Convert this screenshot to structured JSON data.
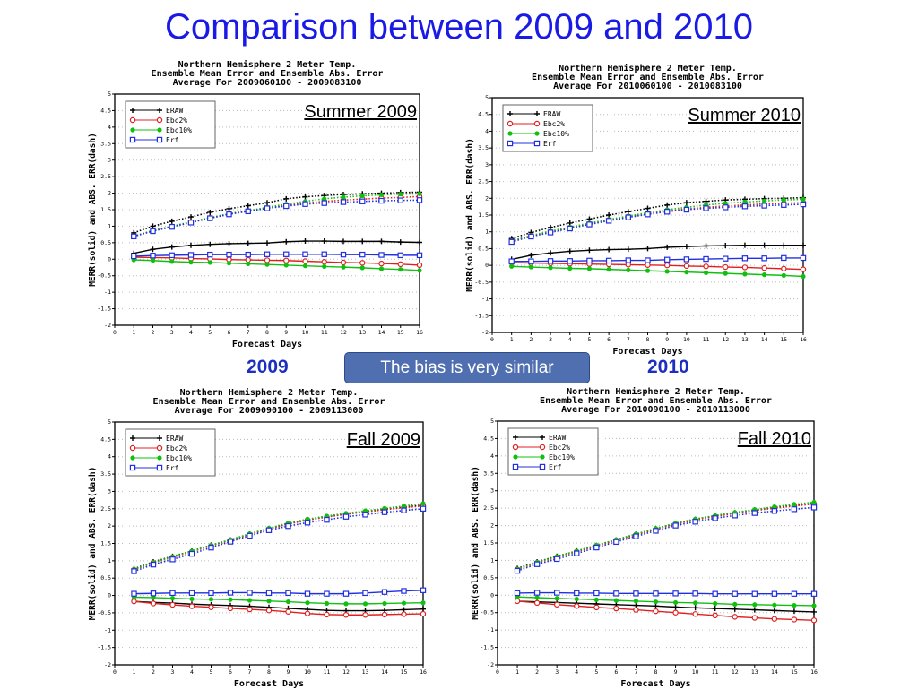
{
  "title": "Comparison between 2009 and 2010",
  "labels": {
    "left_year": "2009",
    "right_year": "2010",
    "note": "The bias is very similar"
  },
  "colors": {
    "ERAW": "#000000",
    "Ebc2%": "#e02020",
    "Ebc10%": "#10c010",
    "Erf": "#2030e0",
    "title": "#1a1ae6"
  },
  "chart_data": [
    {
      "type": "line",
      "label": "Summer 2009",
      "title": [
        "Northern Hemisphere 2 Meter Temp.",
        "Ensemble Mean Error and Ensemble Abs. Error",
        "Average For 2009060100 - 2009083100"
      ],
      "xlabel": "Forecast Days",
      "ylabel": "MERR(solid) and ABS. ERR(dash)",
      "xlim": [
        0,
        16
      ],
      "ylim": [
        -2,
        5
      ],
      "x": [
        1,
        2,
        3,
        4,
        5,
        6,
        7,
        8,
        9,
        10,
        11,
        12,
        13,
        14,
        15,
        16
      ],
      "series": [
        {
          "name": "ERAW",
          "merr": [
            0.18,
            0.3,
            0.37,
            0.42,
            0.45,
            0.47,
            0.48,
            0.49,
            0.53,
            0.55,
            0.55,
            0.54,
            0.54,
            0.54,
            0.52,
            0.51
          ],
          "abs": [
            0.8,
            1.0,
            1.15,
            1.28,
            1.42,
            1.53,
            1.62,
            1.71,
            1.83,
            1.89,
            1.93,
            1.96,
            1.98,
            2.0,
            2.02,
            2.03
          ]
        },
        {
          "name": "Ebc2%",
          "merr": [
            0.06,
            0.05,
            0.04,
            0.02,
            0.01,
            -0.01,
            -0.02,
            -0.03,
            -0.04,
            -0.06,
            -0.08,
            -0.1,
            -0.11,
            -0.13,
            -0.15,
            -0.18
          ],
          "abs": [
            0.7,
            0.86,
            0.99,
            1.12,
            1.25,
            1.37,
            1.46,
            1.55,
            1.63,
            1.7,
            1.75,
            1.79,
            1.82,
            1.85,
            1.87,
            1.9
          ]
        },
        {
          "name": "Ebc10%",
          "merr": [
            -0.02,
            -0.04,
            -0.07,
            -0.09,
            -0.1,
            -0.12,
            -0.14,
            -0.16,
            -0.18,
            -0.2,
            -0.22,
            -0.24,
            -0.26,
            -0.29,
            -0.31,
            -0.34
          ],
          "abs": [
            0.7,
            0.87,
            1.0,
            1.13,
            1.26,
            1.38,
            1.47,
            1.57,
            1.67,
            1.75,
            1.83,
            1.88,
            1.92,
            1.95,
            1.97,
            1.98
          ]
        },
        {
          "name": "Erf",
          "merr": [
            0.09,
            0.11,
            0.12,
            0.13,
            0.14,
            0.14,
            0.14,
            0.15,
            0.15,
            0.15,
            0.15,
            0.14,
            0.14,
            0.13,
            0.12,
            0.12
          ],
          "abs": [
            0.69,
            0.85,
            0.98,
            1.11,
            1.24,
            1.36,
            1.45,
            1.54,
            1.61,
            1.67,
            1.7,
            1.73,
            1.75,
            1.77,
            1.78,
            1.79
          ]
        }
      ]
    },
    {
      "type": "line",
      "label": "Summer 2010",
      "title": [
        "Northern Hemisphere 2 Meter Temp.",
        "Ensemble Mean Error and Ensemble Abs. Error",
        "Average For 2010060100 - 2010083100"
      ],
      "xlabel": "Forecast Days",
      "ylabel": "MERR(solid) and ABS. ERR(dash)",
      "xlim": [
        0,
        16
      ],
      "ylim": [
        -2,
        5
      ],
      "x": [
        1,
        2,
        3,
        4,
        5,
        6,
        7,
        8,
        9,
        10,
        11,
        12,
        13,
        14,
        15,
        16
      ],
      "series": [
        {
          "name": "ERAW",
          "merr": [
            0.18,
            0.3,
            0.37,
            0.42,
            0.45,
            0.47,
            0.48,
            0.5,
            0.54,
            0.56,
            0.58,
            0.59,
            0.6,
            0.6,
            0.6,
            0.6
          ],
          "abs": [
            0.8,
            0.98,
            1.13,
            1.26,
            1.38,
            1.5,
            1.6,
            1.7,
            1.8,
            1.87,
            1.91,
            1.95,
            1.97,
            1.99,
            2.0,
            2.02
          ]
        },
        {
          "name": "Ebc2%",
          "merr": [
            0.08,
            0.07,
            0.06,
            0.05,
            0.04,
            0.03,
            0.02,
            0.01,
            0.0,
            -0.02,
            -0.03,
            -0.05,
            -0.06,
            -0.08,
            -0.1,
            -0.12
          ],
          "abs": [
            0.72,
            0.88,
            1.0,
            1.12,
            1.24,
            1.35,
            1.45,
            1.54,
            1.62,
            1.68,
            1.73,
            1.77,
            1.8,
            1.83,
            1.85,
            1.87
          ]
        },
        {
          "name": "Ebc10%",
          "merr": [
            -0.03,
            -0.05,
            -0.07,
            -0.09,
            -0.1,
            -0.12,
            -0.14,
            -0.16,
            -0.18,
            -0.2,
            -0.22,
            -0.24,
            -0.26,
            -0.28,
            -0.3,
            -0.33
          ],
          "abs": [
            0.73,
            0.89,
            1.02,
            1.14,
            1.26,
            1.37,
            1.47,
            1.57,
            1.66,
            1.73,
            1.8,
            1.85,
            1.89,
            1.92,
            1.95,
            1.97
          ]
        },
        {
          "name": "Erf",
          "merr": [
            0.12,
            0.12,
            0.13,
            0.13,
            0.14,
            0.14,
            0.15,
            0.15,
            0.17,
            0.18,
            0.19,
            0.2,
            0.21,
            0.21,
            0.22,
            0.22
          ],
          "abs": [
            0.7,
            0.86,
            0.98,
            1.1,
            1.22,
            1.33,
            1.43,
            1.52,
            1.6,
            1.66,
            1.7,
            1.73,
            1.76,
            1.78,
            1.8,
            1.82
          ]
        }
      ]
    },
    {
      "type": "line",
      "label": "Fall 2009",
      "title": [
        "Northern Hemisphere 2 Meter Temp.",
        "Ensemble Mean Error and Ensemble Abs. Error",
        "Average For 2009090100 - 2009113000"
      ],
      "xlabel": "Forecast Days",
      "ylabel": "MERR(solid) and ABS. ERR(dash)",
      "xlim": [
        0,
        16
      ],
      "ylim": [
        -2,
        5
      ],
      "x": [
        1,
        2,
        3,
        4,
        5,
        6,
        7,
        8,
        9,
        10,
        11,
        12,
        13,
        14,
        15,
        16
      ],
      "series": [
        {
          "name": "ERAW",
          "merr": [
            -0.17,
            -0.2,
            -0.22,
            -0.25,
            -0.27,
            -0.29,
            -0.31,
            -0.34,
            -0.37,
            -0.4,
            -0.43,
            -0.44,
            -0.44,
            -0.43,
            -0.41,
            -0.39
          ],
          "abs": [
            0.77,
            0.97,
            1.13,
            1.28,
            1.45,
            1.6,
            1.77,
            1.93,
            2.07,
            2.18,
            2.27,
            2.35,
            2.42,
            2.49,
            2.55,
            2.6
          ]
        },
        {
          "name": "Ebc2%",
          "merr": [
            -0.17,
            -0.23,
            -0.27,
            -0.31,
            -0.34,
            -0.37,
            -0.4,
            -0.43,
            -0.47,
            -0.52,
            -0.55,
            -0.56,
            -0.56,
            -0.55,
            -0.54,
            -0.53
          ],
          "abs": [
            0.74,
            0.94,
            1.1,
            1.26,
            1.43,
            1.59,
            1.75,
            1.91,
            2.06,
            2.17,
            2.26,
            2.34,
            2.41,
            2.47,
            2.53,
            2.58
          ]
        },
        {
          "name": "Ebc10%",
          "merr": [
            -0.05,
            -0.06,
            -0.08,
            -0.1,
            -0.11,
            -0.12,
            -0.14,
            -0.16,
            -0.18,
            -0.21,
            -0.23,
            -0.24,
            -0.24,
            -0.23,
            -0.22,
            -0.21
          ],
          "abs": [
            0.75,
            0.95,
            1.12,
            1.28,
            1.45,
            1.61,
            1.78,
            1.94,
            2.09,
            2.2,
            2.29,
            2.37,
            2.44,
            2.51,
            2.58,
            2.65
          ]
        },
        {
          "name": "Erf",
          "merr": [
            0.05,
            0.06,
            0.07,
            0.07,
            0.07,
            0.08,
            0.08,
            0.07,
            0.07,
            0.05,
            0.05,
            0.05,
            0.07,
            0.1,
            0.13,
            0.15
          ],
          "abs": [
            0.7,
            0.89,
            1.04,
            1.2,
            1.38,
            1.55,
            1.72,
            1.88,
            2.0,
            2.1,
            2.18,
            2.27,
            2.33,
            2.4,
            2.45,
            2.5
          ]
        }
      ]
    },
    {
      "type": "line",
      "label": "Fall 2010",
      "title": [
        "Northern Hemisphere 2 Meter Temp.",
        "Ensemble Mean Error and Ensemble Abs. Error",
        "Average For 2010090100 - 2010113000"
      ],
      "xlabel": "Forecast Days",
      "ylabel": "MERR(solid) and ABS. ERR(dash)",
      "xlim": [
        0,
        16
      ],
      "ylim": [
        -2,
        5
      ],
      "x": [
        1,
        2,
        3,
        4,
        5,
        6,
        7,
        8,
        9,
        10,
        11,
        12,
        13,
        14,
        15,
        16
      ],
      "series": [
        {
          "name": "ERAW",
          "merr": [
            -0.17,
            -0.19,
            -0.21,
            -0.23,
            -0.25,
            -0.27,
            -0.29,
            -0.31,
            -0.34,
            -0.36,
            -0.38,
            -0.4,
            -0.42,
            -0.44,
            -0.46,
            -0.48
          ],
          "abs": [
            0.77,
            0.96,
            1.12,
            1.27,
            1.43,
            1.59,
            1.75,
            1.91,
            2.06,
            2.18,
            2.28,
            2.37,
            2.45,
            2.52,
            2.58,
            2.64
          ]
        },
        {
          "name": "Ebc2%",
          "merr": [
            -0.17,
            -0.22,
            -0.27,
            -0.31,
            -0.35,
            -0.38,
            -0.42,
            -0.46,
            -0.5,
            -0.54,
            -0.58,
            -0.62,
            -0.65,
            -0.68,
            -0.7,
            -0.72
          ],
          "abs": [
            0.74,
            0.93,
            1.09,
            1.25,
            1.41,
            1.57,
            1.73,
            1.89,
            2.04,
            2.16,
            2.26,
            2.35,
            2.43,
            2.5,
            2.56,
            2.62
          ]
        },
        {
          "name": "Ebc10%",
          "merr": [
            -0.05,
            -0.07,
            -0.09,
            -0.11,
            -0.13,
            -0.15,
            -0.17,
            -0.19,
            -0.21,
            -0.22,
            -0.24,
            -0.26,
            -0.27,
            -0.28,
            -0.29,
            -0.3
          ],
          "abs": [
            0.75,
            0.95,
            1.11,
            1.27,
            1.44,
            1.6,
            1.76,
            1.92,
            2.07,
            2.19,
            2.29,
            2.38,
            2.46,
            2.54,
            2.61,
            2.67
          ]
        },
        {
          "name": "Erf",
          "merr": [
            0.06,
            0.07,
            0.07,
            0.06,
            0.06,
            0.05,
            0.05,
            0.05,
            0.05,
            0.05,
            0.04,
            0.04,
            0.04,
            0.04,
            0.04,
            0.04
          ],
          "abs": [
            0.7,
            0.89,
            1.04,
            1.2,
            1.37,
            1.53,
            1.69,
            1.85,
            2.0,
            2.11,
            2.21,
            2.29,
            2.36,
            2.42,
            2.47,
            2.52
          ]
        }
      ]
    }
  ]
}
